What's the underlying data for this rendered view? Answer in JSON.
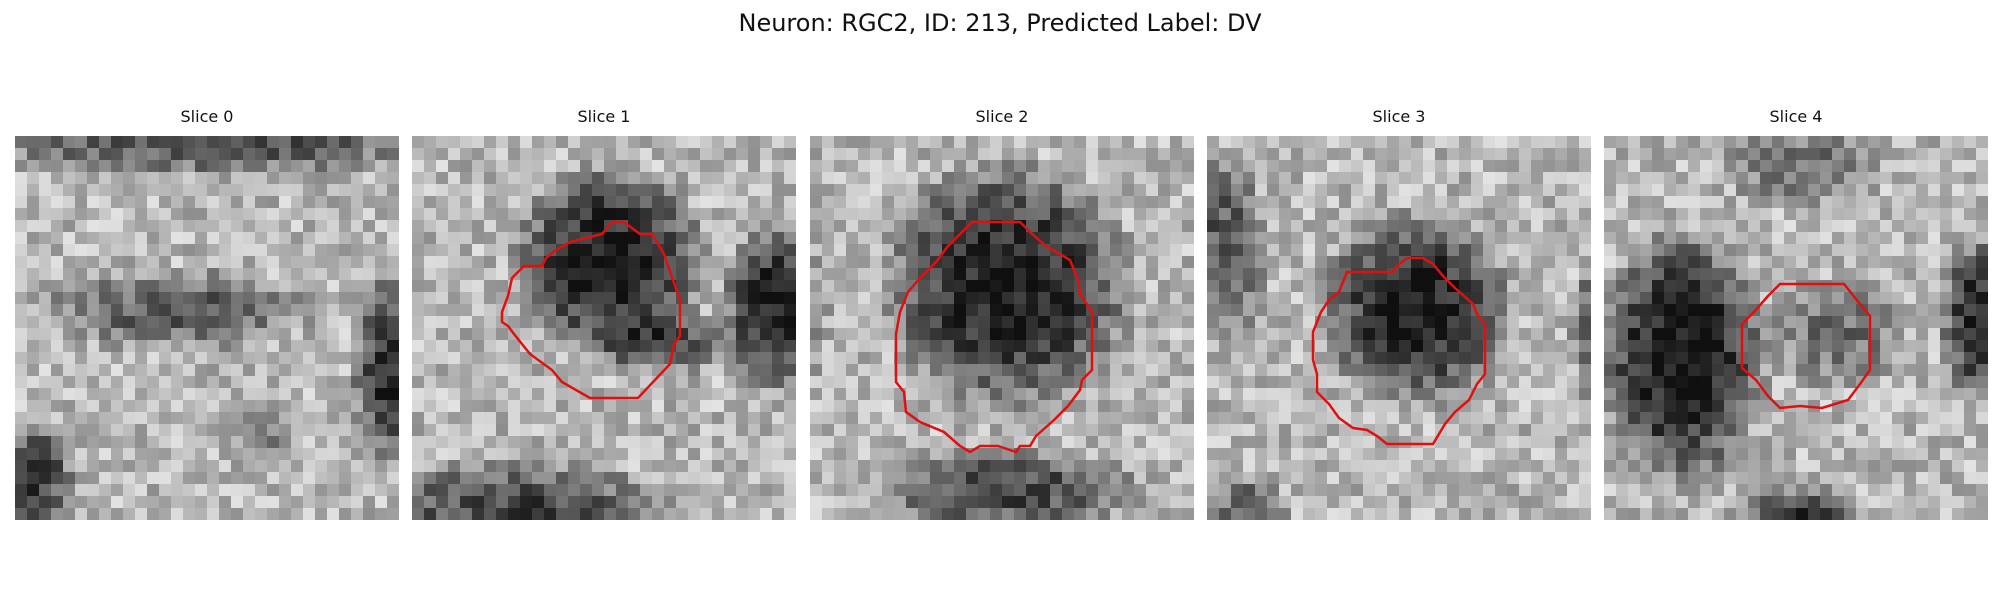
{
  "figure": {
    "title": "Neuron: RGC2, ID: 213, Predicted Label: DV"
  },
  "colors": {
    "contour": "#e01010",
    "background": "#ffffff"
  },
  "panels": [
    {
      "title": "Slice 0",
      "has_contour": false
    },
    {
      "title": "Slice 1",
      "has_contour": true
    },
    {
      "title": "Slice 2",
      "has_contour": true
    },
    {
      "title": "Slice 3",
      "has_contour": true
    },
    {
      "title": "Slice 4",
      "has_contour": true
    }
  ]
}
